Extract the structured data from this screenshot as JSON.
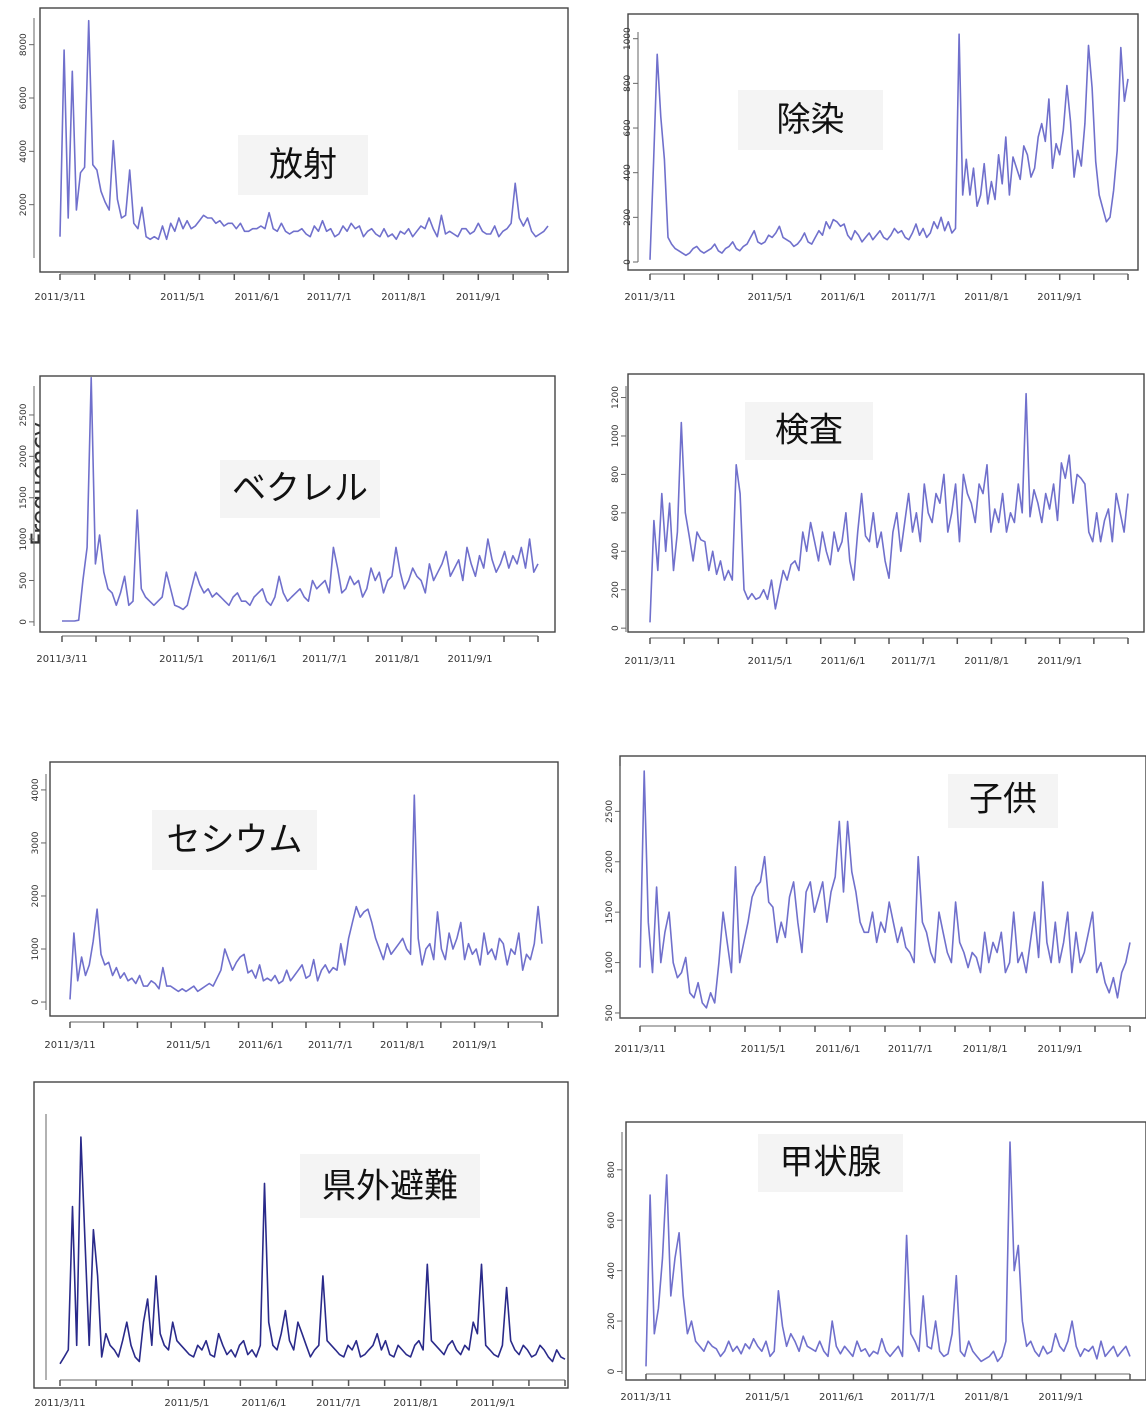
{
  "side_label": "Frequency",
  "colors": {
    "line": "#7070cc",
    "line_dark": "#2a2a8a",
    "frame": "#444444",
    "title_bg": "#f4f4f4"
  },
  "x_tick_labels": [
    "2011/3/11",
    "2011/5/1",
    "2011/6/1",
    "2011/7/1",
    "2011/8/1",
    "2011/9/1"
  ],
  "chart_data": [
    {
      "type": "line",
      "title": "放射",
      "x_range": [
        "2011-03-11",
        "2011-09-30"
      ],
      "yticks": [
        "2000",
        "4000",
        "6000",
        "8000"
      ],
      "ylim": [
        0,
        9000
      ],
      "values": [
        800,
        7800,
        1500,
        7000,
        1800,
        3200,
        3400,
        8900,
        3500,
        3300,
        2500,
        2100,
        1800,
        4400,
        2200,
        1500,
        1600,
        3300,
        1300,
        1100,
        1900,
        800,
        700,
        800,
        700,
        1200,
        700,
        1300,
        1000,
        1500,
        1100,
        1400,
        1100,
        1200,
        1400,
        1600,
        1500,
        1500,
        1300,
        1400,
        1200,
        1300,
        1300,
        1100,
        1300,
        1000,
        1000,
        1100,
        1100,
        1200,
        1100,
        1700,
        1100,
        1000,
        1300,
        1000,
        900,
        1000,
        1000,
        1100,
        900,
        800,
        1200,
        1000,
        1400,
        1000,
        1100,
        800,
        900,
        1200,
        1000,
        1300,
        1100,
        1200,
        800,
        1000,
        1100,
        900,
        800,
        1100,
        800,
        900,
        700,
        1000,
        900,
        1100,
        800,
        1000,
        1200,
        1100,
        1500,
        1100,
        800,
        1600,
        900,
        1000,
        900,
        800,
        1100,
        1100,
        900,
        1000,
        1300,
        1000,
        900,
        900,
        1200,
        800,
        1000,
        1100,
        1300,
        2800,
        1500,
        1200,
        1500,
        1000,
        800,
        900,
        1000,
        1200
      ]
    },
    {
      "type": "line",
      "title": "除染",
      "x_range": [
        "2011-03-11",
        "2011-09-30"
      ],
      "yticks": [
        "0",
        "200",
        "400",
        "600",
        "800",
        "1000"
      ],
      "ylim": [
        0,
        1030
      ],
      "values": [
        10,
        450,
        930,
        650,
        460,
        110,
        80,
        60,
        50,
        40,
        30,
        40,
        60,
        70,
        50,
        40,
        50,
        60,
        80,
        50,
        40,
        60,
        70,
        90,
        60,
        50,
        70,
        80,
        110,
        140,
        90,
        80,
        90,
        120,
        110,
        130,
        160,
        110,
        100,
        90,
        70,
        80,
        100,
        130,
        90,
        80,
        110,
        140,
        120,
        180,
        150,
        190,
        180,
        160,
        170,
        120,
        100,
        140,
        120,
        90,
        110,
        130,
        100,
        120,
        140,
        110,
        100,
        120,
        150,
        130,
        140,
        110,
        100,
        130,
        170,
        120,
        150,
        110,
        130,
        180,
        150,
        200,
        140,
        180,
        130,
        150,
        1020,
        300,
        460,
        300,
        420,
        250,
        300,
        440,
        260,
        360,
        280,
        480,
        350,
        560,
        300,
        470,
        420,
        370,
        520,
        480,
        380,
        420,
        560,
        620,
        540,
        730,
        420,
        530,
        480,
        590,
        790,
        630,
        380,
        500,
        430,
        620,
        970,
        780,
        450,
        300,
        240,
        180,
        200,
        320,
        500,
        960,
        720,
        820
      ]
    },
    {
      "type": "line",
      "title": "ベクレル",
      "x_range": [
        "2011-03-11",
        "2011-09-30"
      ],
      "yticks": [
        "0",
        "500",
        "1000",
        "1500",
        "2000",
        "2500"
      ],
      "ylim": [
        -50,
        2850
      ],
      "values": [
        10,
        10,
        10,
        10,
        20,
        500,
        900,
        2950,
        700,
        1050,
        600,
        400,
        350,
        200,
        350,
        550,
        200,
        250,
        1350,
        400,
        300,
        250,
        200,
        250,
        300,
        600,
        400,
        200,
        180,
        150,
        200,
        400,
        600,
        450,
        350,
        400,
        300,
        350,
        300,
        250,
        200,
        300,
        350,
        250,
        250,
        200,
        300,
        350,
        400,
        250,
        200,
        300,
        550,
        350,
        250,
        300,
        350,
        400,
        300,
        250,
        500,
        400,
        450,
        500,
        350,
        900,
        650,
        350,
        400,
        550,
        450,
        500,
        300,
        400,
        650,
        500,
        600,
        350,
        500,
        550,
        900,
        600,
        400,
        500,
        650,
        550,
        500,
        350,
        700,
        500,
        600,
        700,
        850,
        550,
        650,
        750,
        500,
        900,
        700,
        550,
        800,
        650,
        1000,
        750,
        600,
        700,
        850,
        650,
        800,
        700,
        900,
        650,
        1000,
        600,
        700
      ]
    },
    {
      "type": "line",
      "title": "検査",
      "x_range": [
        "2011-03-11",
        "2011-09-30"
      ],
      "yticks": [
        "0",
        "200",
        "400",
        "600",
        "800",
        "1000",
        "1200"
      ],
      "ylim": [
        -20,
        1260
      ],
      "values": [
        30,
        560,
        300,
        700,
        400,
        650,
        300,
        500,
        1070,
        600,
        480,
        350,
        500,
        460,
        450,
        300,
        400,
        280,
        350,
        250,
        300,
        250,
        850,
        700,
        200,
        150,
        180,
        150,
        160,
        200,
        150,
        250,
        100,
        200,
        300,
        250,
        330,
        350,
        300,
        500,
        400,
        550,
        450,
        350,
        500,
        400,
        330,
        500,
        400,
        450,
        600,
        350,
        250,
        500,
        700,
        480,
        450,
        600,
        420,
        500,
        350,
        260,
        500,
        600,
        400,
        550,
        700,
        500,
        600,
        450,
        750,
        600,
        550,
        700,
        650,
        800,
        500,
        600,
        750,
        450,
        800,
        700,
        650,
        550,
        750,
        700,
        850,
        500,
        620,
        550,
        700,
        500,
        600,
        550,
        750,
        600,
        1220,
        580,
        720,
        650,
        550,
        700,
        620,
        750,
        560,
        860,
        780,
        900,
        650,
        800,
        780,
        750,
        500,
        450,
        600,
        450,
        560,
        620,
        450,
        700,
        600,
        500,
        700
      ]
    },
    {
      "type": "line",
      "title": "セシウム",
      "x_range": [
        "2011-03-11",
        "2011-09-30"
      ],
      "yticks": [
        "0",
        "1000",
        "2000",
        "3000",
        "4000"
      ],
      "ylim": [
        -150,
        4300
      ],
      "values": [
        50,
        1300,
        400,
        850,
        500,
        700,
        1150,
        1750,
        900,
        700,
        750,
        500,
        650,
        450,
        550,
        400,
        450,
        350,
        500,
        300,
        300,
        400,
        350,
        250,
        650,
        300,
        300,
        250,
        200,
        250,
        200,
        250,
        300,
        200,
        250,
        300,
        350,
        300,
        450,
        600,
        1000,
        800,
        600,
        750,
        850,
        900,
        550,
        600,
        450,
        700,
        400,
        450,
        400,
        500,
        350,
        400,
        600,
        400,
        500,
        600,
        700,
        450,
        500,
        800,
        400,
        600,
        700,
        550,
        650,
        600,
        1100,
        700,
        1200,
        1500,
        1800,
        1600,
        1700,
        1750,
        1500,
        1200,
        1000,
        800,
        1100,
        900,
        1000,
        1100,
        1200,
        1000,
        900,
        3900,
        1200,
        700,
        1000,
        1100,
        800,
        1700,
        1000,
        800,
        1300,
        1000,
        1200,
        1500,
        800,
        1100,
        900,
        1000,
        700,
        1300,
        900,
        1000,
        800,
        1200,
        1100,
        700,
        1000,
        900,
        1300,
        600,
        900,
        800,
        1100,
        1800,
        1100
      ]
    },
    {
      "type": "line",
      "title": "子供",
      "x_range": [
        "2011-03-11",
        "2011-09-30"
      ],
      "yticks": [
        "500",
        "1000",
        "1500",
        "2000",
        "2500"
      ],
      "ylim": [
        450,
        2950
      ],
      "values": [
        950,
        2900,
        1400,
        900,
        1750,
        1000,
        1300,
        1500,
        1000,
        850,
        900,
        1050,
        700,
        650,
        800,
        600,
        550,
        700,
        600,
        1000,
        1500,
        1200,
        900,
        1950,
        1000,
        1200,
        1400,
        1650,
        1750,
        1800,
        2050,
        1600,
        1550,
        1200,
        1400,
        1250,
        1650,
        1800,
        1400,
        1100,
        1700,
        1800,
        1500,
        1650,
        1800,
        1400,
        1700,
        1850,
        2400,
        1700,
        2400,
        1900,
        1700,
        1400,
        1300,
        1300,
        1500,
        1200,
        1400,
        1300,
        1600,
        1400,
        1200,
        1350,
        1150,
        1100,
        1000,
        2050,
        1400,
        1300,
        1100,
        1000,
        1500,
        1300,
        1100,
        1000,
        1600,
        1200,
        1100,
        950,
        1100,
        1050,
        900,
        1300,
        1000,
        1200,
        1100,
        1300,
        900,
        1000,
        1500,
        1000,
        1100,
        900,
        1200,
        1500,
        1050,
        1800,
        1200,
        1000,
        1400,
        1000,
        1200,
        1500,
        900,
        1300,
        1000,
        1100,
        1300,
        1500,
        900,
        1000,
        800,
        700,
        850,
        650,
        900,
        1000,
        1200
      ]
    },
    {
      "type": "line",
      "title": "県外避難",
      "x_range": [
        "2011-03-11",
        "2011-09-30"
      ],
      "yticks": [],
      "ylim": [
        -5,
        110
      ],
      "values": [
        2,
        5,
        8,
        70,
        10,
        100,
        55,
        10,
        60,
        40,
        5,
        15,
        10,
        8,
        5,
        12,
        20,
        10,
        5,
        3,
        20,
        30,
        10,
        40,
        15,
        10,
        8,
        20,
        12,
        10,
        8,
        6,
        5,
        10,
        8,
        12,
        6,
        5,
        15,
        10,
        6,
        8,
        5,
        10,
        12,
        6,
        8,
        5,
        10,
        80,
        20,
        10,
        8,
        15,
        25,
        12,
        8,
        20,
        15,
        10,
        5,
        8,
        10,
        40,
        12,
        10,
        8,
        6,
        5,
        10,
        8,
        12,
        5,
        6,
        8,
        10,
        15,
        8,
        12,
        6,
        5,
        10,
        8,
        6,
        5,
        10,
        12,
        8,
        45,
        12,
        10,
        8,
        6,
        10,
        12,
        8,
        6,
        10,
        8,
        20,
        15,
        45,
        10,
        8,
        6,
        5,
        10,
        35,
        12,
        8,
        6,
        10,
        8,
        5,
        6,
        10,
        8,
        5,
        3,
        8,
        5,
        4
      ]
    },
    {
      "type": "line",
      "title": "甲状腺",
      "x_range": [
        "2011-03-11",
        "2011-09-30"
      ],
      "yticks": [
        "0",
        "200",
        "400",
        "600",
        "800"
      ],
      "ylim": [
        -10,
        950
      ],
      "values": [
        20,
        700,
        150,
        250,
        450,
        780,
        300,
        450,
        550,
        300,
        150,
        200,
        120,
        100,
        80,
        120,
        100,
        90,
        60,
        80,
        120,
        80,
        100,
        70,
        110,
        90,
        130,
        100,
        80,
        120,
        60,
        80,
        320,
        180,
        100,
        150,
        120,
        80,
        140,
        100,
        90,
        80,
        120,
        80,
        60,
        200,
        100,
        70,
        100,
        80,
        60,
        120,
        80,
        90,
        60,
        80,
        70,
        130,
        80,
        60,
        80,
        100,
        60,
        540,
        150,
        120,
        80,
        300,
        100,
        90,
        200,
        80,
        60,
        70,
        150,
        380,
        80,
        60,
        120,
        80,
        60,
        40,
        50,
        60,
        80,
        40,
        60,
        120,
        910,
        400,
        500,
        200,
        100,
        120,
        80,
        60,
        100,
        70,
        80,
        150,
        100,
        80,
        120,
        200,
        100,
        60,
        90,
        80,
        100,
        50,
        120,
        60,
        80,
        100,
        60,
        80,
        100,
        60
      ]
    }
  ]
}
